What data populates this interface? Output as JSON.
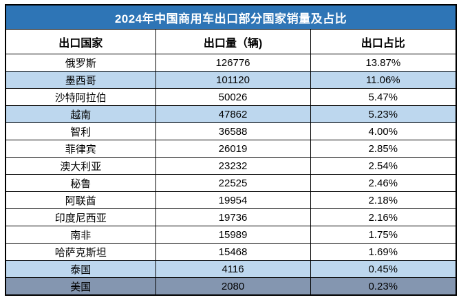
{
  "colors": {
    "title_bar": "#2E75B6",
    "title_text": "#FFFFFF",
    "row_highlight_light_blue": "#BDD7EE",
    "row_highlight_blue_gray": "#8496B0",
    "body_text": "#000000",
    "border": "#000000",
    "row_default": "#FFFFFF"
  },
  "chart_data": {
    "type": "table",
    "title": "2024年中国商用车出口部分国家销量及占比",
    "columns": [
      "出口国家",
      "出口量（辆)",
      "出口占比"
    ],
    "rows": [
      {
        "country": "俄罗斯",
        "volume": 126776,
        "share": "13.87%",
        "highlight": "none"
      },
      {
        "country": "墨西哥",
        "volume": 101120,
        "share": "11.06%",
        "highlight": "light-blue"
      },
      {
        "country": "沙特阿拉伯",
        "volume": 50026,
        "share": "5.47%",
        "highlight": "none"
      },
      {
        "country": "越南",
        "volume": 47862,
        "share": "5.23%",
        "highlight": "light-blue"
      },
      {
        "country": "智利",
        "volume": 36588,
        "share": "4.00%",
        "highlight": "none"
      },
      {
        "country": "菲律宾",
        "volume": 26019,
        "share": "2.85%",
        "highlight": "none"
      },
      {
        "country": "澳大利亚",
        "volume": 23232,
        "share": "2.54%",
        "highlight": "none"
      },
      {
        "country": "秘鲁",
        "volume": 22525,
        "share": "2.46%",
        "highlight": "none"
      },
      {
        "country": "阿联酋",
        "volume": 19954,
        "share": "2.18%",
        "highlight": "none"
      },
      {
        "country": "印度尼西亚",
        "volume": 19736,
        "share": "2.16%",
        "highlight": "none"
      },
      {
        "country": "南非",
        "volume": 15989,
        "share": "1.75%",
        "highlight": "none"
      },
      {
        "country": "哈萨克斯坦",
        "volume": 15468,
        "share": "1.69%",
        "highlight": "none"
      },
      {
        "country": "泰国",
        "volume": 4116,
        "share": "0.45%",
        "highlight": "light-blue"
      },
      {
        "country": "美国",
        "volume": 2080,
        "share": "0.23%",
        "highlight": "blue-gray"
      }
    ]
  }
}
